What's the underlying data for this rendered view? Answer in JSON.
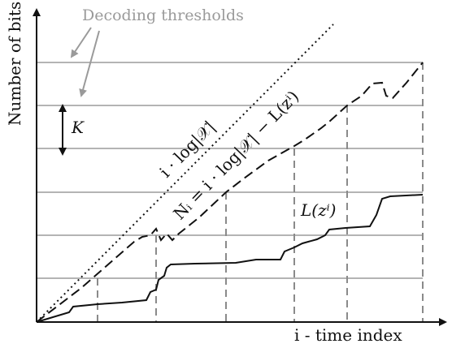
{
  "labels": {
    "y_axis": "Number of bits",
    "x_axis": "i - time index",
    "decoding_thresholds": "Decoding thresholds",
    "k_marker": "K",
    "dotted_line": "i · log|𝒳|",
    "dashed_line": "Nᵢ = i · log|𝒳| − L(zⁱ)",
    "solid_line": "L(zⁱ)"
  },
  "colors": {
    "threshold_gray": "#b4b4b4",
    "text_gray": "#9a9a9a",
    "ink": "#111111"
  },
  "icons": {
    "threshold_pointer": "gray-arrow",
    "k_marker": "double-headed-arrow"
  }
}
